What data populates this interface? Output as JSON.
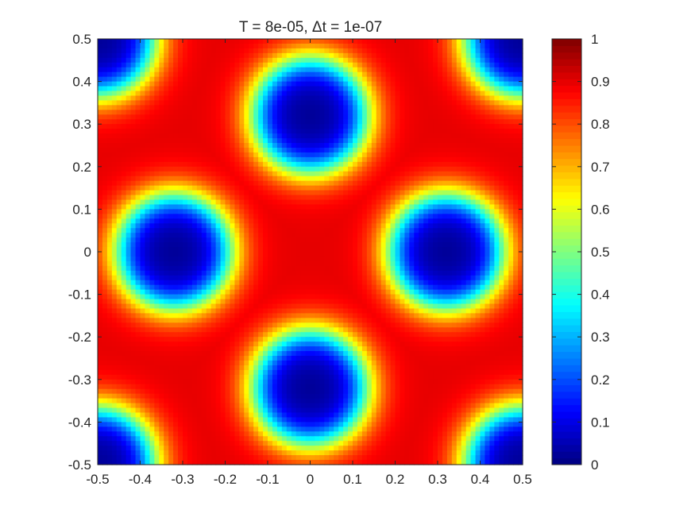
{
  "chart_data": {
    "type": "heatmap",
    "title": "T = 8e-05,  Δt = 1e-07",
    "xlabel": "",
    "ylabel": "",
    "xlim": [
      -0.5,
      0.5
    ],
    "ylim": [
      -0.5,
      0.5
    ],
    "x_ticks": [
      -0.5,
      -0.4,
      -0.3,
      -0.2,
      -0.1,
      0,
      0.1,
      0.2,
      0.3,
      0.4,
      0.5
    ],
    "y_ticks": [
      -0.5,
      -0.4,
      -0.3,
      -0.2,
      -0.1,
      0,
      0.1,
      0.2,
      0.3,
      0.4,
      0.5
    ],
    "x_tick_labels": [
      "-0.5",
      "-0.4",
      "-0.3",
      "-0.2",
      "-0.1",
      "0",
      "0.1",
      "0.2",
      "0.3",
      "0.4",
      "0.5"
    ],
    "y_tick_labels": [
      "-0.5",
      "-0.4",
      "-0.3",
      "-0.2",
      "-0.1",
      "0",
      "0.1",
      "0.2",
      "0.3",
      "0.4",
      "0.5"
    ],
    "colormap": "jet",
    "clim": [
      0,
      1
    ],
    "colorbar_ticks": [
      0,
      0.1,
      0.2,
      0.3,
      0.4,
      0.5,
      0.6,
      0.7,
      0.8,
      0.9,
      1
    ],
    "colorbar_tick_labels": [
      "0",
      "0.1",
      "0.2",
      "0.3",
      "0.4",
      "0.5",
      "0.6",
      "0.7",
      "0.8",
      "0.9",
      "1"
    ],
    "colorbar_location": "right",
    "field": {
      "background_value": 0.9,
      "minimum_value": 0.02,
      "drops": [
        {
          "cx": 0,
          "cy": 0.32
        },
        {
          "cx": 0,
          "cy": -0.32
        },
        {
          "cx": -0.32,
          "cy": 0
        },
        {
          "cx": 0.32,
          "cy": 0
        },
        {
          "cx": -0.5,
          "cy": 0.5
        },
        {
          "cx": 0.5,
          "cy": 0.5
        },
        {
          "cx": -0.5,
          "cy": -0.5
        },
        {
          "cx": 0.5,
          "cy": -0.5
        }
      ],
      "drop_radius": 0.13,
      "interface_width": 0.025
    }
  }
}
